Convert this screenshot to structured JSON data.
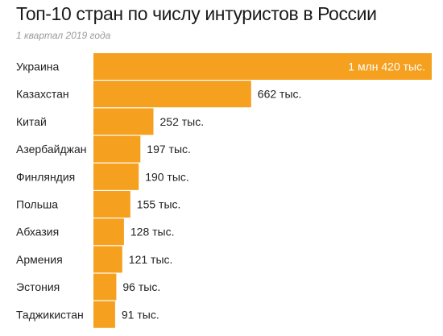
{
  "header": {
    "title": "Топ-10 стран по числу интуристов в России",
    "subtitle": "1 квартал 2019 года"
  },
  "colors": {
    "bar": "#f5a01e",
    "label": "#222222",
    "inside_label": "#ffffff"
  },
  "chart_data": {
    "type": "bar",
    "orientation": "horizontal",
    "title": "Топ-10 стран по числу интуристов в России",
    "subtitle": "1 квартал 2019 года",
    "xlabel": "",
    "ylabel": "",
    "grid": false,
    "unit_note": "thousands of tourists",
    "categories": [
      "Украина",
      "Казахстан",
      "Китай",
      "Азербайджан",
      "Финляндия",
      "Польша",
      "Абхазия",
      "Армения",
      "Эстония",
      "Таджикистан"
    ],
    "values": [
      1420,
      662,
      252,
      197,
      190,
      155,
      128,
      121,
      96,
      91
    ],
    "value_labels": [
      "1 млн 420 тыс.",
      "662 тыс.",
      "252 тыс.",
      "197 тыс.",
      "190 тыс.",
      "155 тыс.",
      "128 тыс.",
      "121 тыс.",
      "96 тыс.",
      "91 тыс."
    ]
  }
}
